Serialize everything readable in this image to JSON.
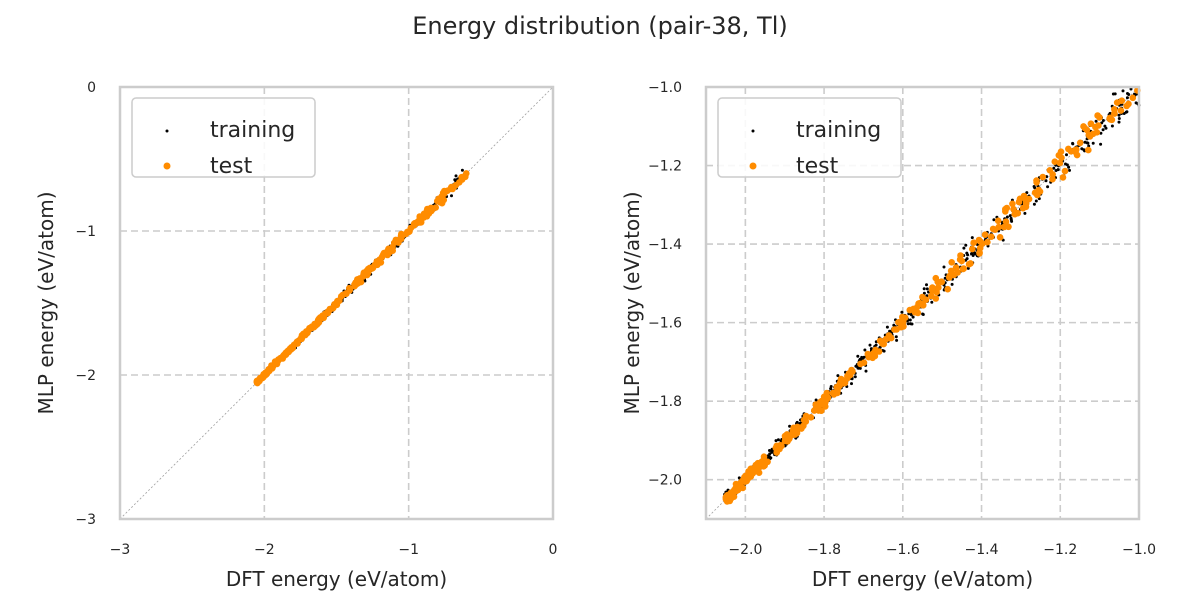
{
  "figure": {
    "title": "Energy distribution (pair-38, Tl)"
  },
  "colors": {
    "training": "#000000",
    "test": "#ff8c00",
    "grid": "#cccccc",
    "spine": "#cccccc",
    "diagonal": "#a0a0a0"
  },
  "chart_data": [
    {
      "type": "scatter",
      "title": "",
      "xlabel": "DFT energy (eV/atom)",
      "ylabel": "MLP energy (eV/atom)",
      "xlim": [
        -3,
        0
      ],
      "ylim": [
        -3,
        0
      ],
      "xticks": [
        -3,
        -2,
        -1,
        0
      ],
      "yticks": [
        -3,
        -2,
        -1,
        0
      ],
      "xtick_labels": [
        "−3",
        "−2",
        "−1",
        "0"
      ],
      "ytick_labels": [
        "−3",
        "−2",
        "−1",
        "0"
      ],
      "grid": true,
      "legend": {
        "position": "upper-left",
        "entries": [
          "training",
          "test"
        ]
      },
      "reference_line": "y = x",
      "series": [
        {
          "name": "training",
          "color": "#000000",
          "x_range": [
            -2.05,
            -0.62
          ],
          "spread": 0.012
        },
        {
          "name": "test",
          "color": "#ff8c00",
          "x_range": [
            -2.05,
            -0.6
          ],
          "spread": 0.01
        }
      ]
    },
    {
      "type": "scatter",
      "title": "",
      "xlabel": "DFT energy (eV/atom)",
      "ylabel": "MLP energy (eV/atom)",
      "xlim": [
        -2.1,
        -1.0
      ],
      "ylim": [
        -2.1,
        -1.0
      ],
      "xticks": [
        -2.0,
        -1.8,
        -1.6,
        -1.4,
        -1.2,
        -1.0
      ],
      "yticks": [
        -2.0,
        -1.8,
        -1.6,
        -1.4,
        -1.2,
        -1.0
      ],
      "xtick_labels": [
        "−2.0",
        "−1.8",
        "−1.6",
        "−1.4",
        "−1.2",
        "−1.0"
      ],
      "ytick_labels": [
        "−2.0",
        "−1.8",
        "−1.6",
        "−1.4",
        "−1.2",
        "−1.0"
      ],
      "grid": true,
      "legend": {
        "position": "upper-left",
        "entries": [
          "training",
          "test"
        ]
      },
      "reference_line": "y = x",
      "series": [
        {
          "name": "training",
          "color": "#000000",
          "x_range": [
            -2.05,
            -1.0
          ],
          "spread": 0.012
        },
        {
          "name": "test",
          "color": "#ff8c00",
          "x_range": [
            -2.05,
            -1.0
          ],
          "spread": 0.01
        }
      ]
    }
  ]
}
